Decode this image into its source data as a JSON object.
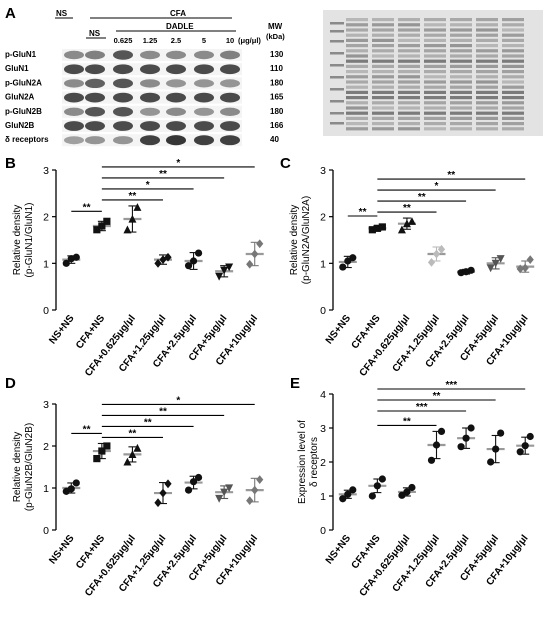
{
  "panelA": {
    "letter": "A",
    "header_ns": "NS",
    "header_cfa": "CFA",
    "header_ns2": "NS",
    "header_dadle": "DADLE",
    "doses": [
      "0.625",
      "1.25",
      "2.5",
      "5",
      "10"
    ],
    "dose_unit": "(μg/μl)",
    "mw_label": "MW",
    "mw_unit": "(kDa)",
    "bands": [
      {
        "label": "p-GluN1",
        "mw": "130",
        "intensity": [
          0.55,
          0.6,
          0.8,
          0.55,
          0.55,
          0.55,
          0.6
        ]
      },
      {
        "label": "GluN1",
        "mw": "110",
        "intensity": [
          0.85,
          0.85,
          0.85,
          0.85,
          0.85,
          0.85,
          0.85
        ]
      },
      {
        "label": "p-GluN2A",
        "mw": "180",
        "intensity": [
          0.55,
          0.75,
          0.8,
          0.55,
          0.5,
          0.5,
          0.5
        ]
      },
      {
        "label": "GluN2A",
        "mw": "165",
        "intensity": [
          0.85,
          0.85,
          0.85,
          0.85,
          0.85,
          0.85,
          0.85
        ]
      },
      {
        "label": "p-GluN2B",
        "mw": "180",
        "intensity": [
          0.55,
          0.8,
          0.8,
          0.5,
          0.55,
          0.5,
          0.55
        ]
      },
      {
        "label": "GluN2B",
        "mw": "166",
        "intensity": [
          0.85,
          0.85,
          0.85,
          0.85,
          0.85,
          0.85,
          0.85
        ]
      },
      {
        "label": "δ receptors",
        "mw": "40",
        "intensity": [
          0.45,
          0.5,
          0.5,
          0.9,
          0.95,
          0.9,
          0.9
        ]
      }
    ]
  },
  "colors": {
    "grid_dark": "#222222",
    "marker": "#111111",
    "light_gray": "#bbbbbb",
    "mid_gray": "#777777",
    "dark_gray": "#555555",
    "stain_bg": "#e3e3e3"
  },
  "chart_data": [
    {
      "type": "scatter",
      "panel": "B",
      "ylabel": [
        "Relative density",
        "(p-GluN1/GluN1)"
      ],
      "ylim": [
        0,
        3
      ],
      "yticks": [
        0,
        1,
        2,
        3
      ],
      "categories": [
        "NS+NS",
        "CFA+NS",
        "CFA+0.625μg/μl",
        "CFA+1.25μg/μl",
        "CFA+2.5μg/μl",
        "CFA+5μg/μl",
        "CFA+10μg/μl"
      ],
      "groups": [
        {
          "marker": "circle",
          "color": "#111111",
          "mean": 1.08,
          "sd": 0.08,
          "points": [
            1.0,
            1.1,
            1.13
          ]
        },
        {
          "marker": "square",
          "color": "#111111",
          "mean": 1.8,
          "sd": 0.1,
          "points": [
            1.72,
            1.8,
            1.9
          ]
        },
        {
          "marker": "triangle",
          "color": "#111111",
          "mean": 1.95,
          "sd": 0.28,
          "points": [
            1.72,
            1.95,
            2.2
          ]
        },
        {
          "marker": "diamond",
          "color": "#111111",
          "mean": 1.08,
          "sd": 0.1,
          "points": [
            1.0,
            1.08,
            1.13
          ]
        },
        {
          "marker": "circle",
          "color": "#111111",
          "mean": 1.05,
          "sd": 0.18,
          "points": [
            0.95,
            1.05,
            1.22
          ]
        },
        {
          "marker": "triangle-down",
          "color": "#111111",
          "mean": 0.83,
          "sd": 0.12,
          "points": [
            0.72,
            0.85,
            0.92
          ]
        },
        {
          "marker": "diamond",
          "color": "#777777",
          "mean": 1.2,
          "sd": 0.25,
          "points": [
            0.98,
            1.2,
            1.42
          ]
        }
      ],
      "significance": [
        {
          "from": 0,
          "to": 1,
          "label": "**"
        },
        {
          "from": 1,
          "to": 3,
          "label": "**"
        },
        {
          "from": 1,
          "to": 4,
          "label": "*"
        },
        {
          "from": 1,
          "to": 5,
          "label": "**"
        },
        {
          "from": 1,
          "to": 6,
          "label": "*"
        }
      ]
    },
    {
      "type": "scatter",
      "panel": "C",
      "ylabel": [
        "Relative density",
        "(p-GluN2A/GluN2A)"
      ],
      "ylim": [
        0,
        3
      ],
      "yticks": [
        0,
        1,
        2,
        3
      ],
      "categories": [
        "NS+NS",
        "CFA+NS",
        "CFA+0.625μg/μl",
        "CFA+1.25μg/μl",
        "CFA+2.5μg/μl",
        "CFA+5μg/μl",
        "CFA+10μg/μl"
      ],
      "groups": [
        {
          "marker": "circle",
          "color": "#111111",
          "mean": 1.03,
          "sd": 0.12,
          "points": [
            0.92,
            1.05,
            1.12
          ]
        },
        {
          "marker": "square",
          "color": "#111111",
          "mean": 1.75,
          "sd": 0.05,
          "points": [
            1.72,
            1.75,
            1.78
          ]
        },
        {
          "marker": "triangle",
          "color": "#111111",
          "mean": 1.85,
          "sd": 0.12,
          "points": [
            1.72,
            1.85,
            1.9
          ]
        },
        {
          "marker": "diamond",
          "color": "#bbbbbb",
          "mean": 1.2,
          "sd": 0.15,
          "points": [
            1.02,
            1.2,
            1.3
          ]
        },
        {
          "marker": "circle",
          "color": "#111111",
          "mean": 0.82,
          "sd": 0.05,
          "points": [
            0.8,
            0.82,
            0.85
          ]
        },
        {
          "marker": "triangle-down",
          "color": "#555555",
          "mean": 1.0,
          "sd": 0.12,
          "points": [
            0.9,
            1.0,
            1.1
          ]
        },
        {
          "marker": "diamond",
          "color": "#777777",
          "mean": 0.93,
          "sd": 0.12,
          "points": [
            0.88,
            0.9,
            1.08
          ]
        }
      ],
      "significance": [
        {
          "from": 0,
          "to": 1,
          "label": "**"
        },
        {
          "from": 1,
          "to": 3,
          "label": "**"
        },
        {
          "from": 1,
          "to": 4,
          "label": "**"
        },
        {
          "from": 1,
          "to": 5,
          "label": "*"
        },
        {
          "from": 1,
          "to": 6,
          "label": "**"
        }
      ]
    },
    {
      "type": "scatter",
      "panel": "D",
      "ylabel": [
        "Relative density",
        "(p-GluN2B/GluN2B)"
      ],
      "ylim": [
        0,
        3
      ],
      "yticks": [
        0,
        1,
        2,
        3
      ],
      "categories": [
        "NS+NS",
        "CFA+NS",
        "CFA+0.625μg/μl",
        "CFA+1.25μg/μl",
        "CFA+2.5μg/μl",
        "CFA+5μg/μl",
        "CFA+10μg/μl"
      ],
      "groups": [
        {
          "marker": "circle",
          "color": "#111111",
          "mean": 1.0,
          "sd": 0.12,
          "points": [
            0.92,
            0.98,
            1.12
          ]
        },
        {
          "marker": "square",
          "color": "#111111",
          "mean": 1.88,
          "sd": 0.18,
          "points": [
            1.7,
            1.88,
            2.0
          ]
        },
        {
          "marker": "triangle",
          "color": "#111111",
          "mean": 1.8,
          "sd": 0.18,
          "points": [
            1.62,
            1.8,
            1.95
          ]
        },
        {
          "marker": "diamond",
          "color": "#111111",
          "mean": 0.88,
          "sd": 0.25,
          "points": [
            0.65,
            0.88,
            1.1
          ]
        },
        {
          "marker": "circle",
          "color": "#111111",
          "mean": 1.13,
          "sd": 0.15,
          "points": [
            0.95,
            1.15,
            1.25
          ]
        },
        {
          "marker": "triangle-down",
          "color": "#555555",
          "mean": 0.9,
          "sd": 0.15,
          "points": [
            0.75,
            0.9,
            1.0
          ]
        },
        {
          "marker": "diamond",
          "color": "#777777",
          "mean": 0.95,
          "sd": 0.28,
          "points": [
            0.7,
            0.95,
            1.2
          ]
        }
      ],
      "significance": [
        {
          "from": 0,
          "to": 1,
          "label": "**"
        },
        {
          "from": 1,
          "to": 3,
          "label": "**"
        },
        {
          "from": 1,
          "to": 4,
          "label": "**"
        },
        {
          "from": 1,
          "to": 5,
          "label": "**"
        },
        {
          "from": 1,
          "to": 6,
          "label": "*"
        }
      ]
    },
    {
      "type": "scatter",
      "panel": "E",
      "ylabel": [
        "Expression level of",
        "δ receptors"
      ],
      "ylim": [
        0,
        4
      ],
      "yticks": [
        0,
        1,
        2,
        3,
        4
      ],
      "categories": [
        "NS+NS",
        "CFA+NS",
        "CFA+0.625μg/μl",
        "CFA+1.25μg/μl",
        "CFA+2.5μg/μl",
        "CFA+5μg/μl",
        "CFA+10μg/μl"
      ],
      "groups": [
        {
          "marker": "circle",
          "color": "#111111",
          "mean": 1.05,
          "sd": 0.12,
          "points": [
            0.92,
            1.05,
            1.18
          ]
        },
        {
          "marker": "circle",
          "color": "#111111",
          "mean": 1.3,
          "sd": 0.2,
          "points": [
            1.0,
            1.3,
            1.5
          ]
        },
        {
          "marker": "circle",
          "color": "#111111",
          "mean": 1.12,
          "sd": 0.12,
          "points": [
            1.02,
            1.12,
            1.25
          ]
        },
        {
          "marker": "circle",
          "color": "#111111",
          "mean": 2.5,
          "sd": 0.4,
          "points": [
            2.05,
            2.5,
            2.9
          ]
        },
        {
          "marker": "circle",
          "color": "#111111",
          "mean": 2.7,
          "sd": 0.3,
          "points": [
            2.45,
            2.7,
            3.0
          ]
        },
        {
          "marker": "circle",
          "color": "#111111",
          "mean": 2.38,
          "sd": 0.4,
          "points": [
            2.0,
            2.38,
            2.85
          ]
        },
        {
          "marker": "circle",
          "color": "#111111",
          "mean": 2.48,
          "sd": 0.25,
          "points": [
            2.3,
            2.48,
            2.75
          ]
        }
      ],
      "significance": [
        {
          "from": 1,
          "to": 3,
          "label": "**"
        },
        {
          "from": 1,
          "to": 4,
          "label": "***"
        },
        {
          "from": 1,
          "to": 5,
          "label": "**"
        },
        {
          "from": 1,
          "to": 6,
          "label": "***"
        }
      ]
    }
  ]
}
